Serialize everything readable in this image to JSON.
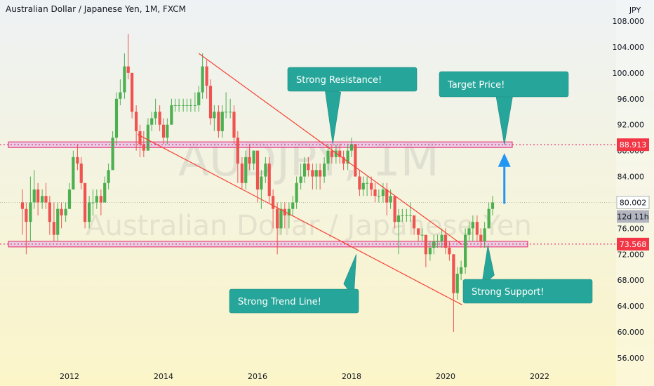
{
  "header": {
    "title": "Australian Dollar / Japanese Yen, 1M, FXCM"
  },
  "watermark": {
    "symbol": "AUDJPY, 1M",
    "name": "Australian Dollar / Japanese Yen"
  },
  "colors": {
    "up": "#4caf50",
    "down": "#ef5350",
    "level": "#e91e63",
    "zone": "#e1bee7",
    "trend": "#f44336",
    "callout": "#26a69a",
    "arrow": "#2196f3",
    "bg_top": "#eef2f4",
    "bg_bottom": "#fbf5c8"
  },
  "chart_data": {
    "type": "candlestick",
    "title": "Australian Dollar / Japanese Yen, 1M, FXCM",
    "y_unit": "JPY",
    "ylim": [
      56,
      108
    ],
    "y_ticks": [
      "108.000",
      "104.000",
      "100.000",
      "96.000",
      "92.000",
      "88.000",
      "84.000",
      "80.000",
      "76.000",
      "72.000",
      "68.000",
      "64.000",
      "60.000",
      "56.000"
    ],
    "x_ticks": [
      "2012",
      "2014",
      "2016",
      "2018",
      "2020",
      "2022"
    ],
    "current_price": "80.002",
    "countdown": "12d 11h",
    "levels": [
      {
        "name": "resistance",
        "price": 88.913,
        "label": "88.913"
      },
      {
        "name": "support",
        "price": 73.568,
        "label": "73.568"
      }
    ],
    "trend_lines": [
      {
        "name": "upper-trend-line",
        "from": [
          2014.75,
          103
        ],
        "to": [
          2020.35,
          73.5
        ]
      },
      {
        "name": "lower-trend-line",
        "from": [
          2013.45,
          90.5
        ],
        "to": [
          2020.35,
          64.2
        ]
      }
    ],
    "annotations": [
      {
        "name": "strong-resistance",
        "text": "Strong Resistance!",
        "point": [
          2017.6,
          89
        ]
      },
      {
        "name": "target-price",
        "text": "Target Price!",
        "point": [
          2021.25,
          88.9
        ]
      },
      {
        "name": "strong-trend-line",
        "text": "Strong Trend Line!",
        "point": [
          2018.1,
          72
        ]
      },
      {
        "name": "strong-support",
        "text": "Strong Support!",
        "point": [
          2020.9,
          73.4
        ]
      }
    ],
    "candles": [
      [
        2011.0,
        80,
        82,
        75,
        79
      ],
      [
        2011.08,
        79,
        80,
        72,
        77
      ],
      [
        2011.17,
        77,
        84,
        74,
        80
      ],
      [
        2011.25,
        80,
        85,
        79,
        82
      ],
      [
        2011.33,
        82,
        83,
        78,
        80
      ],
      [
        2011.42,
        80,
        82,
        79,
        81
      ],
      [
        2011.5,
        81,
        83,
        79,
        80
      ],
      [
        2011.58,
        80,
        81,
        75,
        77
      ],
      [
        2011.67,
        77,
        80,
        74,
        75
      ],
      [
        2011.75,
        75,
        80,
        74,
        79
      ],
      [
        2011.83,
        79,
        80,
        76,
        78
      ],
      [
        2011.92,
        78,
        80,
        77,
        79
      ],
      [
        2012.0,
        79,
        83,
        79,
        82
      ],
      [
        2012.08,
        82,
        88,
        82,
        87
      ],
      [
        2012.17,
        87,
        89,
        85,
        86
      ],
      [
        2012.25,
        86,
        87,
        82,
        83
      ],
      [
        2012.33,
        83,
        83,
        76,
        77
      ],
      [
        2012.42,
        77,
        81,
        76,
        80
      ],
      [
        2012.5,
        80,
        82,
        78,
        80
      ],
      [
        2012.58,
        80,
        82,
        79,
        81
      ],
      [
        2012.67,
        81,
        82,
        78,
        80
      ],
      [
        2012.75,
        80,
        84,
        80,
        83
      ],
      [
        2012.83,
        83,
        86,
        82,
        85
      ],
      [
        2012.92,
        85,
        91,
        85,
        90
      ],
      [
        2013.0,
        90,
        97,
        89,
        96
      ],
      [
        2013.08,
        96,
        99,
        95,
        97
      ],
      [
        2013.17,
        97,
        103,
        96,
        101
      ],
      [
        2013.25,
        101,
        106,
        99,
        100
      ],
      [
        2013.33,
        100,
        100,
        93,
        94
      ],
      [
        2013.42,
        94,
        95,
        88,
        91
      ],
      [
        2013.5,
        91,
        92,
        87,
        89
      ],
      [
        2013.58,
        89,
        91,
        87,
        88
      ],
      [
        2013.67,
        88,
        93,
        88,
        92
      ],
      [
        2013.75,
        92,
        94,
        91,
        93
      ],
      [
        2013.83,
        93,
        96,
        92,
        94
      ],
      [
        2013.92,
        94,
        95,
        91,
        92
      ],
      [
        2014.0,
        92,
        93,
        89,
        90
      ],
      [
        2014.08,
        90,
        93,
        89,
        92
      ],
      [
        2014.17,
        92,
        96,
        92,
        95
      ],
      [
        2014.25,
        95,
        96,
        94,
        95
      ],
      [
        2014.33,
        95,
        96,
        94,
        95
      ],
      [
        2014.42,
        95,
        96,
        94,
        95
      ],
      [
        2014.5,
        95,
        96,
        94,
        95
      ],
      [
        2014.58,
        95,
        96,
        94,
        95
      ],
      [
        2014.67,
        95,
        97,
        94,
        95
      ],
      [
        2014.75,
        95,
        98,
        94,
        97
      ],
      [
        2014.83,
        97,
        103,
        96,
        101
      ],
      [
        2014.92,
        101,
        102,
        96,
        98
      ],
      [
        2015.0,
        98,
        99,
        92,
        93
      ],
      [
        2015.08,
        93,
        95,
        91,
        94
      ],
      [
        2015.17,
        94,
        95,
        90,
        91
      ],
      [
        2015.25,
        91,
        95,
        90,
        94
      ],
      [
        2015.33,
        94,
        97,
        93,
        94
      ],
      [
        2015.42,
        94,
        96,
        93,
        94
      ],
      [
        2015.5,
        94,
        95,
        89,
        90
      ],
      [
        2015.58,
        90,
        91,
        83,
        86
      ],
      [
        2015.67,
        86,
        87,
        82,
        83
      ],
      [
        2015.75,
        83,
        88,
        82,
        87
      ],
      [
        2015.83,
        87,
        89,
        85,
        86
      ],
      [
        2015.92,
        86,
        88,
        85,
        88
      ],
      [
        2016.0,
        88,
        88,
        80,
        82
      ],
      [
        2016.08,
        82,
        85,
        79,
        84
      ],
      [
        2016.17,
        84,
        87,
        83,
        86
      ],
      [
        2016.25,
        86,
        87,
        80,
        81
      ],
      [
        2016.33,
        81,
        82,
        76,
        79
      ],
      [
        2016.42,
        79,
        80,
        72,
        76
      ],
      [
        2016.5,
        76,
        80,
        75,
        79
      ],
      [
        2016.58,
        79,
        80,
        76,
        78
      ],
      [
        2016.67,
        78,
        80,
        76,
        79
      ],
      [
        2016.75,
        79,
        81,
        78,
        80
      ],
      [
        2016.83,
        80,
        84,
        79,
        83
      ],
      [
        2016.92,
        83,
        86,
        82,
        84
      ],
      [
        2017.0,
        84,
        87,
        83,
        86
      ],
      [
        2017.08,
        86,
        87,
        84,
        85
      ],
      [
        2017.17,
        85,
        86,
        82,
        84
      ],
      [
        2017.25,
        84,
        86,
        82,
        85
      ],
      [
        2017.33,
        85,
        86,
        82,
        84
      ],
      [
        2017.42,
        84,
        87,
        83,
        86
      ],
      [
        2017.5,
        86,
        89,
        85,
        88
      ],
      [
        2017.58,
        88,
        89,
        86,
        87
      ],
      [
        2017.67,
        87,
        89,
        86,
        88
      ],
      [
        2017.75,
        88,
        89,
        86,
        87
      ],
      [
        2017.83,
        87,
        88,
        85,
        86
      ],
      [
        2017.92,
        86,
        89,
        85,
        88
      ],
      [
        2018.0,
        88,
        90,
        87,
        89
      ],
      [
        2018.08,
        89,
        89,
        84,
        84
      ],
      [
        2018.17,
        84,
        85,
        81,
        82
      ],
      [
        2018.25,
        82,
        84,
        81,
        83
      ],
      [
        2018.33,
        83,
        84,
        81,
        83
      ],
      [
        2018.42,
        83,
        84,
        81,
        82
      ],
      [
        2018.5,
        82,
        83,
        80,
        81
      ],
      [
        2018.58,
        81,
        82,
        80,
        81
      ],
      [
        2018.67,
        81,
        83,
        80,
        82
      ],
      [
        2018.75,
        82,
        83,
        78,
        80
      ],
      [
        2018.83,
        80,
        82,
        79,
        81
      ],
      [
        2018.92,
        81,
        81,
        76,
        77
      ],
      [
        2019.0,
        77,
        79,
        72,
        78
      ],
      [
        2019.08,
        78,
        79,
        77,
        78
      ],
      [
        2019.17,
        78,
        79,
        77,
        78
      ],
      [
        2019.25,
        78,
        80,
        77,
        78
      ],
      [
        2019.33,
        78,
        78,
        75,
        76
      ],
      [
        2019.42,
        76,
        76,
        74,
        75
      ],
      [
        2019.5,
        75,
        76,
        74,
        75
      ],
      [
        2019.58,
        75,
        75,
        70,
        72
      ],
      [
        2019.67,
        72,
        74,
        71,
        73
      ],
      [
        2019.75,
        73,
        75,
        72,
        74
      ],
      [
        2019.83,
        74,
        75,
        73,
        74
      ],
      [
        2019.92,
        74,
        76,
        73,
        75
      ],
      [
        2020.0,
        75,
        76,
        72,
        73
      ],
      [
        2020.08,
        73,
        74,
        71,
        72
      ],
      [
        2020.17,
        72,
        72,
        60,
        66
      ],
      [
        2020.25,
        66,
        70,
        65,
        69
      ],
      [
        2020.33,
        69,
        71,
        68,
        70
      ],
      [
        2020.42,
        70,
        76,
        69,
        75
      ],
      [
        2020.5,
        75,
        77,
        74,
        76
      ],
      [
        2020.58,
        76,
        78,
        74,
        77
      ],
      [
        2020.67,
        77,
        78,
        74,
        75
      ],
      [
        2020.75,
        75,
        76,
        73,
        74
      ],
      [
        2020.83,
        74,
        77,
        73,
        76
      ],
      [
        2020.92,
        76,
        80,
        76,
        79
      ],
      [
        2021.0,
        79,
        81,
        78,
        80
      ]
    ]
  }
}
